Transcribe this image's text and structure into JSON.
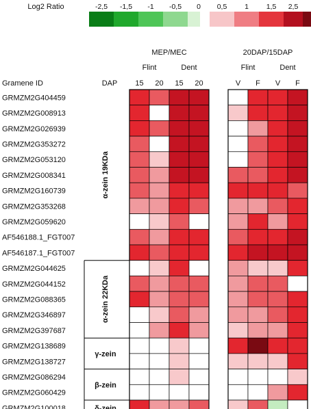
{
  "chart_data": {
    "type": "heatmap",
    "legend": {
      "title": "Log2 Ratio",
      "entries": [
        {
          "label": "-2,5",
          "color": "#0a7d17"
        },
        {
          "label": "-1,5",
          "color": "#20a82c"
        },
        {
          "label": "-1",
          "color": "#4ec557"
        },
        {
          "label": "-0,5",
          "color": "#8ed88f"
        },
        {
          "label": "0",
          "color": "#d8f2d4"
        },
        {
          "label": "0,5",
          "color": "#f7c6c8"
        },
        {
          "label": "1",
          "color": "#ef7d83"
        },
        {
          "label": "1,5",
          "color": "#e4353d"
        },
        {
          "label": "2,5",
          "color": "#b3101f"
        },
        {
          "label": "",
          "color": "#7a0a12"
        }
      ]
    },
    "row_header": "Gramene ID",
    "dap_label": "DAP",
    "panels": [
      {
        "title": "MEP/MEC",
        "groups": [
          {
            "label": "Flint"
          },
          {
            "label": "Dent"
          }
        ],
        "columns": [
          "15",
          "20",
          "15",
          "20"
        ]
      },
      {
        "title": "20DAP/15DAP",
        "groups": [
          {
            "label": "Flint"
          },
          {
            "label": "Dent"
          }
        ],
        "columns": [
          "V",
          "F",
          "V",
          "F"
        ]
      }
    ],
    "families": [
      {
        "label": "α-zein 19KDa",
        "rows": 11
      },
      {
        "label": "α-zein 22KDa",
        "rows": 5
      },
      {
        "label": "γ-zein",
        "rows": 2
      },
      {
        "label": "β-zein",
        "rows": 2
      },
      {
        "label": "δ-zein",
        "rows": 1
      }
    ],
    "rows": [
      "GRMZM2G404459",
      "GRMZM2G008913",
      "GRMZM2G026939",
      "GRMZM2G353272",
      "GRMZM2G053120",
      "GRMZM2G008341",
      "GRMZM2G160739",
      "GRMZM2G353268",
      "GRMZM2G059620",
      "AF546188.1_FGT007",
      "AF546187.1_FGT007",
      "GRMZM2G044625",
      "GRMZM2G044152",
      "GRMZM2G088365",
      "GRMZM2G346897",
      "GRMZM2G397687",
      "GRMZM2G138689",
      "GRMZM2G138727",
      "GRMZM2G086294",
      "GRMZM2G060429",
      "GRMZM2G100018"
    ],
    "values": [
      [
        2.0,
        1.5,
        2.5,
        2.5,
        0.0,
        2.0,
        2.0,
        2.5
      ],
      [
        2.0,
        0.0,
        2.5,
        2.5,
        0.5,
        2.0,
        2.0,
        2.5
      ],
      [
        2.0,
        1.5,
        2.5,
        2.5,
        0.0,
        1.0,
        2.0,
        2.5
      ],
      [
        1.5,
        0.0,
        2.5,
        2.5,
        0.0,
        1.5,
        2.0,
        2.5
      ],
      [
        1.5,
        0.5,
        2.5,
        2.5,
        0.0,
        1.5,
        2.0,
        2.5
      ],
      [
        1.5,
        1.0,
        2.5,
        2.5,
        1.5,
        1.5,
        2.0,
        2.5
      ],
      [
        1.5,
        1.0,
        2.0,
        2.0,
        2.0,
        2.0,
        2.0,
        1.5
      ],
      [
        1.0,
        1.0,
        2.0,
        1.5,
        1.0,
        1.0,
        1.5,
        2.0
      ],
      [
        0.0,
        0.5,
        1.5,
        0.0,
        1.0,
        2.0,
        1.0,
        2.0
      ],
      [
        1.5,
        1.0,
        2.0,
        2.0,
        1.5,
        2.0,
        2.0,
        2.5
      ],
      [
        2.0,
        1.5,
        2.0,
        2.0,
        2.0,
        2.5,
        2.5,
        2.5
      ],
      [
        0.0,
        0.5,
        2.0,
        0.0,
        1.0,
        0.5,
        0.5,
        2.0
      ],
      [
        1.5,
        1.0,
        1.5,
        1.5,
        1.0,
        1.5,
        1.5,
        0.0
      ],
      [
        2.0,
        1.0,
        1.5,
        1.5,
        1.0,
        1.5,
        1.5,
        2.0
      ],
      [
        0.0,
        0.5,
        1.5,
        1.0,
        1.0,
        1.0,
        1.5,
        2.0
      ],
      [
        0.0,
        1.0,
        2.0,
        1.0,
        0.5,
        1.0,
        1.0,
        2.0
      ],
      [
        0.0,
        0.0,
        0.5,
        0.0,
        2.0,
        3.0,
        2.0,
        2.0
      ],
      [
        0.0,
        0.0,
        0.5,
        0.0,
        0.5,
        0.5,
        0.5,
        2.0
      ],
      [
        0.0,
        0.0,
        0.5,
        0.0,
        0.0,
        0.0,
        0.0,
        0.5
      ],
      [
        0.0,
        0.0,
        0.0,
        0.0,
        0.0,
        0.0,
        1.0,
        2.0
      ],
      [
        2.0,
        1.0,
        1.0,
        1.5,
        0.5,
        1.5,
        -0.5,
        0.0
      ]
    ],
    "color_scale": [
      {
        "value": -2.5,
        "color": "#0a7d17"
      },
      {
        "value": -1.5,
        "color": "#20a82c"
      },
      {
        "value": -1.0,
        "color": "#4ec557"
      },
      {
        "value": -0.5,
        "color": "#c4ecc0"
      },
      {
        "value": 0.0,
        "color": "#ffffff"
      },
      {
        "value": 0.5,
        "color": "#f8c9cb"
      },
      {
        "value": 1.0,
        "color": "#f09a9e"
      },
      {
        "value": 1.5,
        "color": "#e95a60"
      },
      {
        "value": 2.0,
        "color": "#e3262f"
      },
      {
        "value": 2.5,
        "color": "#c41422"
      },
      {
        "value": 3.0,
        "color": "#7a0a12"
      }
    ]
  }
}
